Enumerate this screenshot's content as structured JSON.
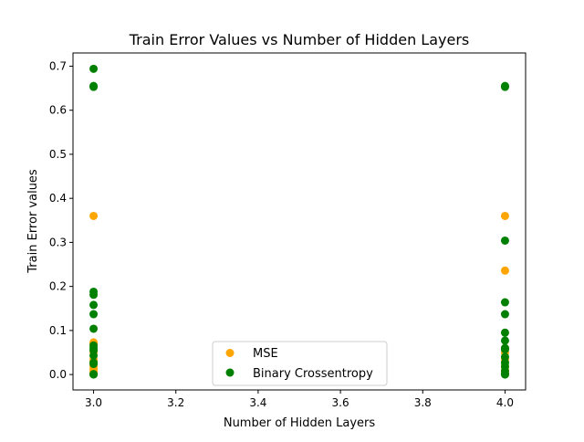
{
  "chart_data": {
    "type": "scatter",
    "title": "Train Error Values vs Number of Hidden Layers",
    "xlabel": "Number of Hidden Layers",
    "ylabel": "Train Error values",
    "xlim": [
      2.95,
      4.05
    ],
    "ylim": [
      -0.035,
      0.73
    ],
    "xticks": [
      "3.0",
      "3.2",
      "3.4",
      "3.6",
      "3.8",
      "4.0"
    ],
    "yticks": [
      "0.0",
      "0.1",
      "0.2",
      "0.3",
      "0.4",
      "0.5",
      "0.6",
      "0.7"
    ],
    "grid": false,
    "legend_position": "bottom-center",
    "series": [
      {
        "name": "MSE",
        "color": "#ffa500",
        "points": [
          [
            3,
            0.36
          ],
          [
            3,
            0.073
          ],
          [
            3,
            0.07
          ],
          [
            3,
            0.05
          ],
          [
            3,
            0.033
          ],
          [
            3,
            0.02
          ],
          [
            3,
            0.013
          ],
          [
            3,
            0.007
          ],
          [
            3,
            0.003
          ],
          [
            3,
            0.001
          ],
          [
            4,
            0.36
          ],
          [
            4,
            0.236
          ],
          [
            4,
            0.06
          ],
          [
            4,
            0.05
          ],
          [
            4,
            0.035
          ],
          [
            4,
            0.02
          ],
          [
            4,
            0.01
          ],
          [
            4,
            0.004
          ],
          [
            4,
            0.001
          ]
        ]
      },
      {
        "name": "Binary Crossentropy",
        "color": "#008000",
        "points": [
          [
            3,
            0.694
          ],
          [
            3,
            0.655
          ],
          [
            3,
            0.653
          ],
          [
            3,
            0.188
          ],
          [
            3,
            0.181
          ],
          [
            3,
            0.158
          ],
          [
            3,
            0.137
          ],
          [
            3,
            0.104
          ],
          [
            3,
            0.066
          ],
          [
            3,
            0.06
          ],
          [
            3,
            0.055
          ],
          [
            3,
            0.043
          ],
          [
            3,
            0.027
          ],
          [
            3,
            0.024
          ],
          [
            3,
            0.001
          ],
          [
            3,
            0.0
          ],
          [
            4,
            0.655
          ],
          [
            4,
            0.653
          ],
          [
            4,
            0.304
          ],
          [
            4,
            0.164
          ],
          [
            4,
            0.137
          ],
          [
            4,
            0.095
          ],
          [
            4,
            0.077
          ],
          [
            4,
            0.06
          ],
          [
            4,
            0.057
          ],
          [
            4,
            0.04
          ],
          [
            4,
            0.027
          ],
          [
            4,
            0.018
          ],
          [
            4,
            0.008
          ],
          [
            4,
            0.002
          ],
          [
            4,
            0.0
          ]
        ]
      }
    ]
  }
}
